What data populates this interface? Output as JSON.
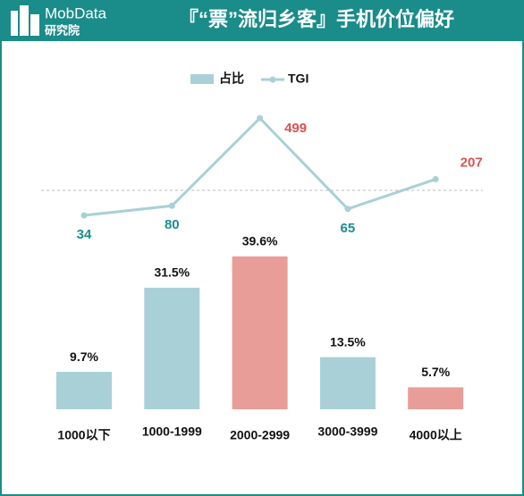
{
  "header": {
    "brand": "MobData",
    "brand_sub": "研究院"
  },
  "chart_data": {
    "type": "bar",
    "title": "『“票”流归乡客』手机价位偏好",
    "categories": [
      "1000以下",
      "1000-1999",
      "2000-2999",
      "3000-3999",
      "4000以上"
    ],
    "series": [
      {
        "name": "占比",
        "color": "#a9d0d7",
        "values": [
          9.7,
          31.5,
          39.6,
          13.5,
          5.7
        ],
        "value_labels": [
          "9.7%",
          "31.5%",
          "39.6%",
          "13.5%",
          "5.7%"
        ],
        "bar_colors": [
          "#a9d0d7",
          "#a9d0d7",
          "#e89d99",
          "#a9d0d7",
          "#e89d99"
        ]
      },
      {
        "type": "line",
        "name": "TGI",
        "color": "#a9d0d7",
        "values": [
          34,
          80,
          499,
          65,
          207
        ],
        "label_colors": [
          "#1b8d90",
          "#1b8d90",
          "#d9534f",
          "#1b8d90",
          "#d9534f"
        ]
      }
    ]
  }
}
